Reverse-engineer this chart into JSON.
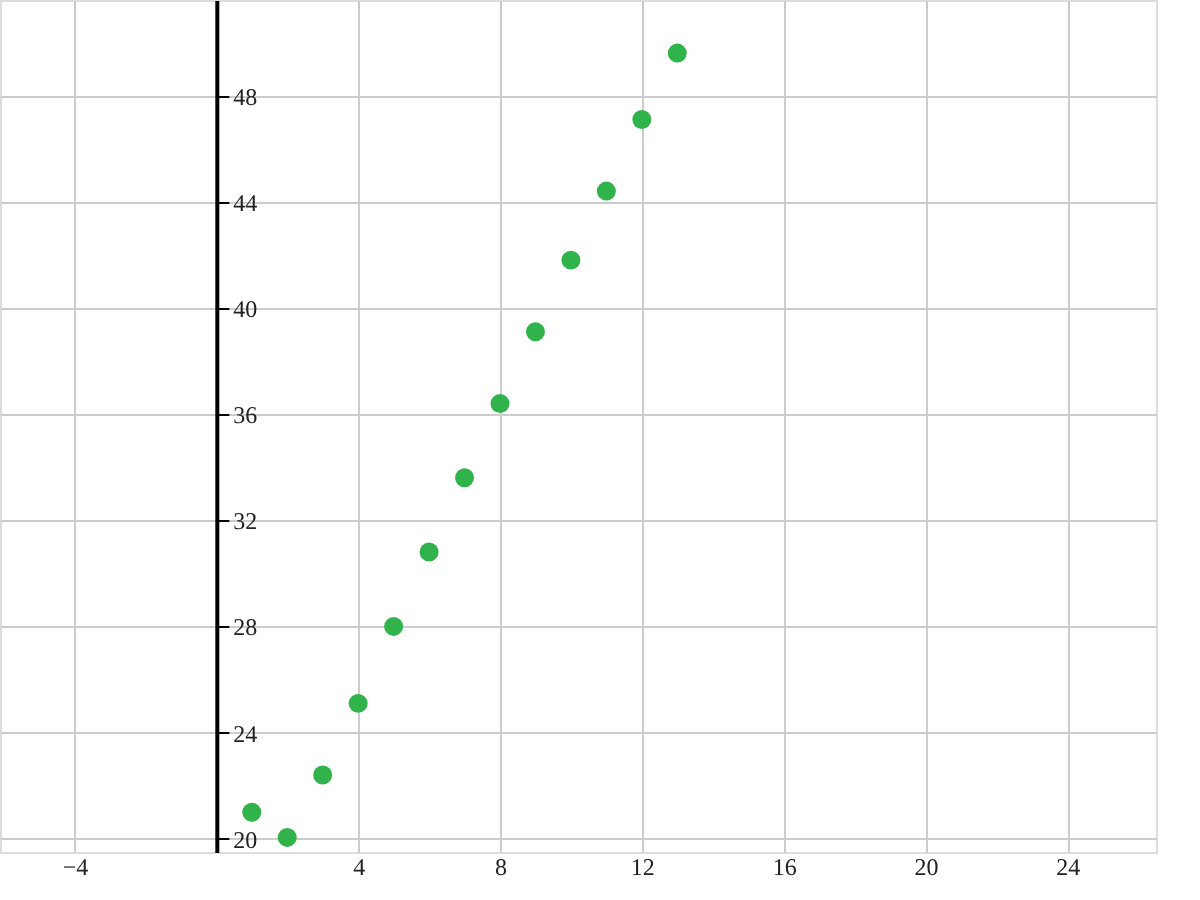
{
  "chart_data": {
    "type": "scatter",
    "x": [
      1,
      2,
      3,
      4,
      5,
      6,
      7,
      8,
      9,
      10,
      11,
      12,
      13
    ],
    "series": [
      {
        "color": "#2fb34a",
        "values": [
          21.0,
          20.05,
          22.4,
          25.1,
          28.0,
          30.8,
          33.6,
          36.4,
          39.1,
          41.8,
          44.4,
          47.1,
          49.6
        ]
      }
    ],
    "xlim": [
      -6.1,
      26.5
    ],
    "xticks": [
      -4,
      4,
      8,
      12,
      16,
      20,
      24
    ],
    "ylim": [
      19.5,
      51.6
    ],
    "yticks": [
      20,
      24,
      28,
      32,
      36,
      40,
      44,
      48
    ],
    "grid": true,
    "marker": "circle",
    "legend": false
  }
}
